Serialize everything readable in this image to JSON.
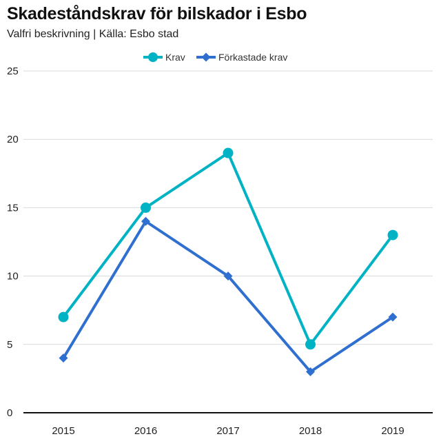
{
  "chart_data": {
    "type": "line",
    "title": "Skadeståndskrav för bilskador i Esbo",
    "subtitle": "Valfri beskrivning | Källa: Esbo stad",
    "x": [
      "2015",
      "2016",
      "2017",
      "2018",
      "2019"
    ],
    "ylim": [
      0,
      25
    ],
    "yticks": [
      0,
      5,
      10,
      15,
      20,
      25
    ],
    "grid": true,
    "legend_position": "top-center",
    "series": [
      {
        "name": "Krav",
        "values": [
          7,
          15,
          19,
          5,
          13
        ],
        "color": "#00b3c4",
        "marker": "circle"
      },
      {
        "name": "Förkastade krav",
        "values": [
          4,
          14,
          10,
          3,
          7
        ],
        "color": "#2f6fcf",
        "marker": "diamond"
      }
    ]
  }
}
